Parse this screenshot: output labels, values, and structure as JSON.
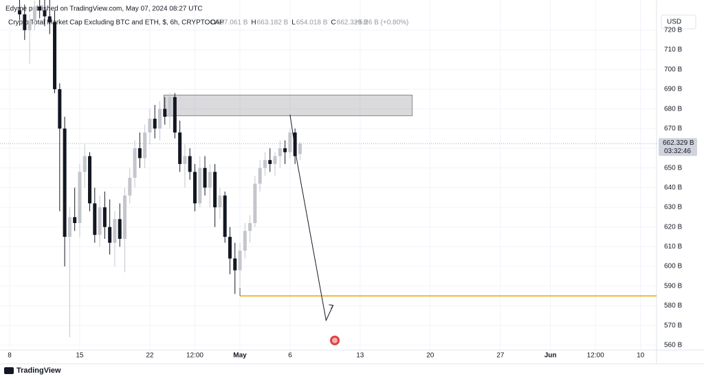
{
  "header": {
    "publisher": "Edyme published on TradingView.com, May 07, 2024 08:27 UTC",
    "symbol": "Crypto Total Market Cap Excluding BTC and ETH, $, 6h, CRYPTOCAP",
    "ohlc": [
      {
        "key": "O",
        "text": "657.061 B"
      },
      {
        "key": "H",
        "text": "663.182 B"
      },
      {
        "key": "L",
        "text": "654.018 B"
      },
      {
        "key": "C",
        "text": "662.329 B"
      }
    ],
    "change": "+5.26 B (+0.80%)",
    "currency": "USD",
    "price_tag": "662.329 B",
    "countdown": "03:32:46",
    "footer": "TradingView"
  },
  "chart_data": {
    "type": "candlestick",
    "up_color": "#c4c6cc",
    "down_color": "#131722",
    "grid": true,
    "xlim": [
      7.04,
      72.6
    ],
    "ylim": [
      557.5,
      735.3
    ],
    "xticks": [
      {
        "value": 8,
        "label": "8"
      },
      {
        "value": 15,
        "label": "15"
      },
      {
        "value": 22,
        "label": "22"
      },
      {
        "value": 26.5,
        "label": "12:00"
      },
      {
        "value": 31,
        "label": "May"
      },
      {
        "value": 36,
        "label": "6"
      },
      {
        "value": 43,
        "label": "13"
      },
      {
        "value": 50,
        "label": "20"
      },
      {
        "value": 57,
        "label": "27"
      },
      {
        "value": 62,
        "label": "Jun"
      },
      {
        "value": 66.5,
        "label": "12:00"
      },
      {
        "value": 71,
        "label": "10"
      }
    ],
    "yticks": [
      {
        "value": 560,
        "label": "560 B"
      },
      {
        "value": 570,
        "label": "570 B"
      },
      {
        "value": 580,
        "label": "580 B"
      },
      {
        "value": 590,
        "label": "590 B"
      },
      {
        "value": 600,
        "label": "600 B"
      },
      {
        "value": 610,
        "label": "610 B"
      },
      {
        "value": 620,
        "label": "620 B"
      },
      {
        "value": 630,
        "label": "630 B"
      },
      {
        "value": 640,
        "label": "640 B"
      },
      {
        "value": 650,
        "label": "650 B"
      },
      {
        "value": 660,
        "label": "660 B"
      },
      {
        "value": 670,
        "label": "670 B"
      },
      {
        "value": 680,
        "label": "680 B"
      },
      {
        "value": 690,
        "label": "690 B"
      },
      {
        "value": 700,
        "label": "700 B"
      },
      {
        "value": 710,
        "label": "710 B"
      },
      {
        "value": 720,
        "label": "720 B"
      }
    ],
    "x": [
      9,
      9.5,
      10,
      10.5,
      11,
      11.5,
      12,
      12.5,
      13,
      13.5,
      14,
      14.5,
      15,
      15.5,
      16,
      16.5,
      17,
      17.5,
      18,
      18.5,
      19,
      19.5,
      20,
      20.5,
      21,
      21.5,
      22,
      22.5,
      23,
      23.5,
      24,
      24.5,
      25,
      25.5,
      26,
      26.5,
      27,
      27.5,
      28,
      28.5,
      29,
      29.5,
      30,
      30.5,
      31,
      31.5,
      32,
      32.5,
      33,
      33.5,
      34,
      34.5,
      35,
      35.5,
      36,
      36.5,
      37
    ],
    "open": [
      730,
      728,
      720,
      725,
      732,
      730,
      727,
      724,
      690,
      670,
      615,
      625,
      622,
      648,
      656,
      632,
      616,
      630,
      620,
      612,
      624,
      614,
      636,
      645,
      660,
      655,
      668,
      675,
      670,
      680,
      676,
      686,
      668,
      652,
      656,
      648,
      632,
      650,
      640,
      648,
      630,
      636,
      615,
      604,
      598,
      608,
      618,
      622,
      642,
      650,
      654,
      652,
      656,
      660,
      658,
      668,
      657.061
    ],
    "high": [
      736,
      733,
      728,
      735,
      736,
      736,
      736,
      730,
      693,
      676,
      630,
      640,
      652,
      662,
      658,
      640,
      636,
      638,
      634,
      628,
      632,
      640,
      650,
      664,
      668,
      672,
      680,
      682,
      684,
      686,
      688,
      688,
      674,
      662,
      660,
      652,
      656,
      656,
      652,
      652,
      640,
      638,
      620,
      612,
      612,
      622,
      626,
      646,
      654,
      658,
      660,
      658,
      664,
      664,
      670,
      670,
      663.182
    ],
    "low": [
      725,
      715,
      703,
      720,
      726,
      722,
      718,
      688,
      628,
      600,
      564,
      618,
      615,
      640,
      628,
      612,
      610,
      614,
      606,
      600,
      610,
      597,
      632,
      640,
      650,
      650,
      662,
      665,
      664,
      672,
      670,
      665,
      648,
      640,
      644,
      628,
      630,
      636,
      630,
      620,
      624,
      612,
      596,
      586,
      590,
      604,
      612,
      620,
      638,
      646,
      648,
      646,
      650,
      652,
      655,
      652,
      654.018
    ],
    "close": [
      728,
      720,
      725,
      732,
      730,
      727,
      724,
      690,
      670,
      615,
      625,
      622,
      648,
      656,
      632,
      616,
      630,
      620,
      612,
      624,
      614,
      636,
      645,
      660,
      655,
      668,
      675,
      670,
      680,
      676,
      686,
      668,
      652,
      656,
      648,
      632,
      650,
      640,
      648,
      630,
      636,
      615,
      604,
      598,
      608,
      618,
      622,
      642,
      650,
      654,
      652,
      656,
      660,
      658,
      668,
      656,
      662.329
    ],
    "last_price": 662.329,
    "zone": {
      "x": [
        23.4,
        48.2
      ],
      "y": [
        676.5,
        687
      ]
    },
    "level": {
      "x": 31,
      "y": 585,
      "color": "#f0a000"
    },
    "arrow": {
      "x": [
        36,
        36.7,
        39.6,
        40.3
      ],
      "y": [
        677.1,
        653.4,
        572.6,
        580.2
      ]
    }
  }
}
